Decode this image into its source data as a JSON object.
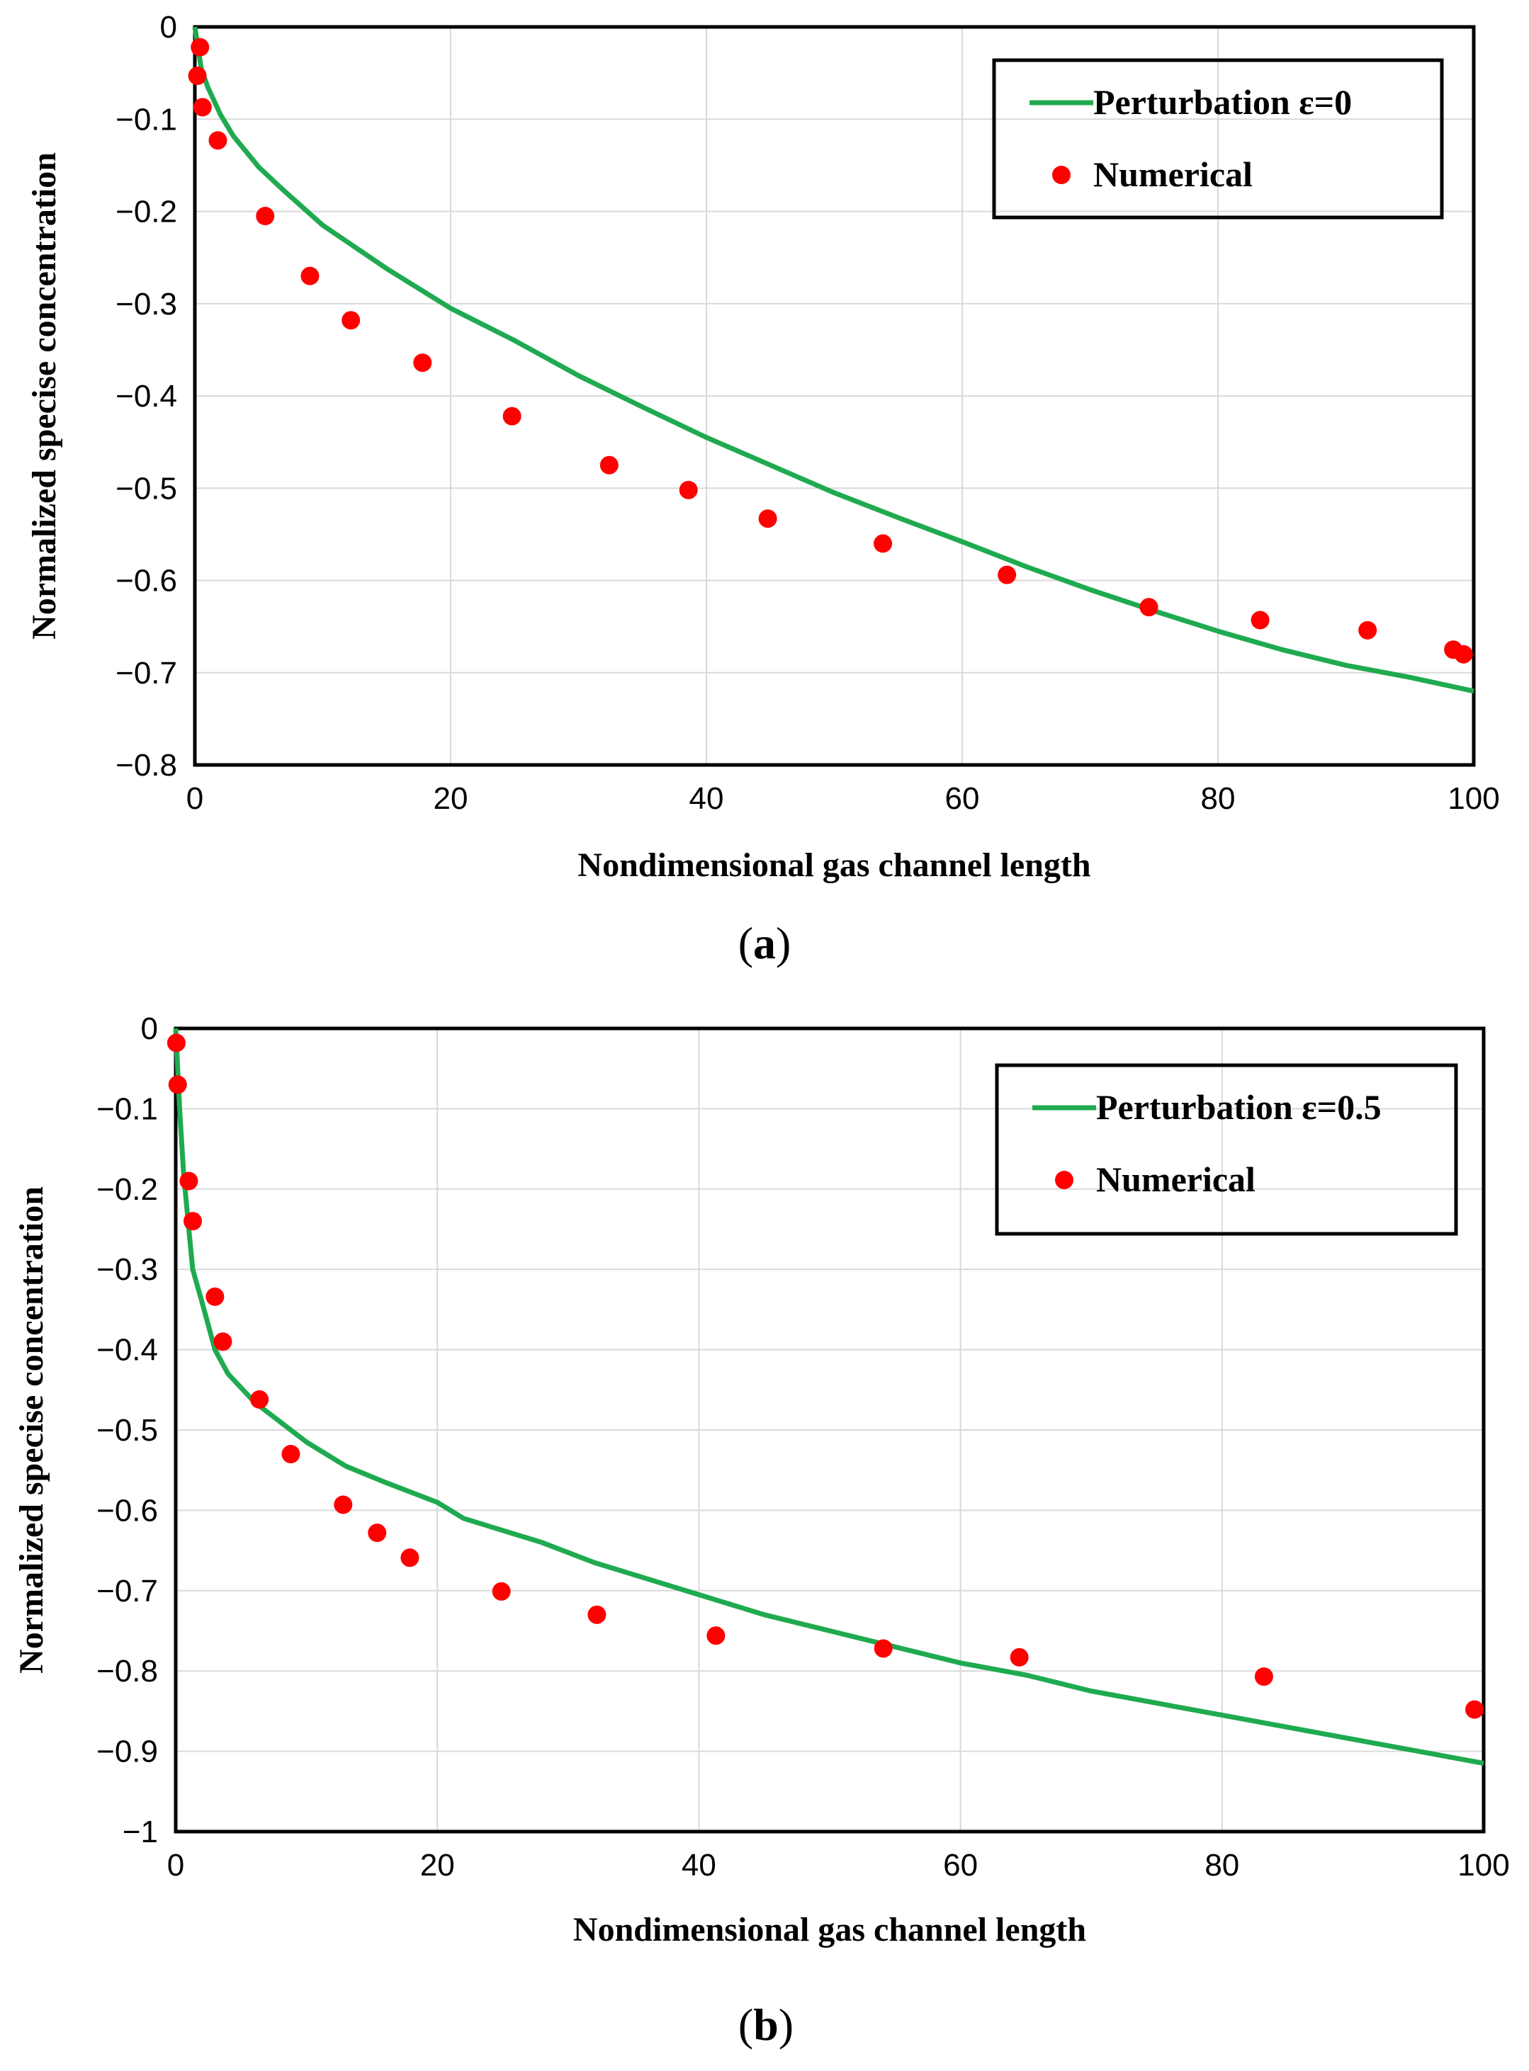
{
  "colors": {
    "curve": "#1faa50",
    "points": "#ff0000",
    "grid": "#d9d9d9"
  },
  "chart_data": [
    {
      "type": "line",
      "panel_label_letter": "a",
      "xlabel": "Nondimensional gas channel length",
      "ylabel": "Normalized specise concentration",
      "xlim": [
        0,
        100
      ],
      "ylim": [
        -0.8,
        0
      ],
      "xticks": [
        0,
        20,
        40,
        60,
        80,
        100
      ],
      "xtick_labels": [
        "0",
        "20",
        "40",
        "60",
        "80",
        "100"
      ],
      "yticks": [
        0,
        -0.1,
        -0.2,
        -0.3,
        -0.4,
        -0.5,
        -0.6,
        -0.7,
        -0.8
      ],
      "ytick_labels": [
        "0",
        "−0.1",
        "−0.2",
        "−0.3",
        "−0.4",
        "−0.5",
        "−0.6",
        "−0.7",
        "−0.8"
      ],
      "legend_position": "top-right",
      "series": [
        {
          "name": "Perturbation ε=0",
          "kind": "line",
          "x": [
            0,
            0.5,
            1,
            2,
            3,
            5,
            7,
            10,
            15,
            20,
            25,
            30,
            35,
            40,
            45,
            50,
            55,
            60,
            65,
            70,
            75,
            80,
            85,
            90,
            95,
            100
          ],
          "y": [
            0,
            -0.045,
            -0.065,
            -0.095,
            -0.118,
            -0.152,
            -0.178,
            -0.215,
            -0.262,
            -0.305,
            -0.34,
            -0.378,
            -0.412,
            -0.445,
            -0.475,
            -0.505,
            -0.532,
            -0.558,
            -0.585,
            -0.61,
            -0.633,
            -0.655,
            -0.675,
            -0.692,
            -0.705,
            -0.72
          ]
        },
        {
          "name": "Numerical",
          "kind": "scatter",
          "x": [
            0.2,
            0.4,
            0.6,
            1.8,
            5.5,
            9,
            12.2,
            17.8,
            24.8,
            32.4,
            38.6,
            44.8,
            53.8,
            63.5,
            74.6,
            83.3,
            91.7,
            98.4,
            99.2
          ],
          "y": [
            -0.053,
            -0.022,
            -0.087,
            -0.123,
            -0.205,
            -0.27,
            -0.318,
            -0.364,
            -0.422,
            -0.475,
            -0.502,
            -0.533,
            -0.56,
            -0.594,
            -0.629,
            -0.643,
            -0.654,
            -0.675,
            -0.68
          ]
        }
      ]
    },
    {
      "type": "line",
      "panel_label_letter": "b",
      "xlabel": "Nondimensional gas channel length",
      "ylabel": "Normalized specise concentration",
      "xlim": [
        0,
        100
      ],
      "ylim": [
        -1,
        0
      ],
      "xticks": [
        0,
        20,
        40,
        60,
        80,
        100
      ],
      "xtick_labels": [
        "0",
        "20",
        "40",
        "60",
        "80",
        "100"
      ],
      "yticks": [
        0,
        -0.1,
        -0.2,
        -0.3,
        -0.4,
        -0.5,
        -0.6,
        -0.7,
        -0.8,
        -0.9,
        -1
      ],
      "ytick_labels": [
        "0",
        "−0.1",
        "−0.2",
        "−0.3",
        "−0.4",
        "−0.5",
        "−0.6",
        "−0.7",
        "−0.8",
        "−0.9",
        "−1"
      ],
      "legend_position": "top-right",
      "series": [
        {
          "name": "Perturbation ε=0.5",
          "kind": "line",
          "x": [
            0,
            0.3,
            0.6,
            1,
            1.3,
            2,
            3,
            4,
            6,
            8,
            10,
            13,
            16,
            20,
            22,
            25,
            28,
            32,
            36,
            40,
            45,
            50,
            55,
            60,
            65,
            70,
            75,
            80,
            85,
            90,
            95,
            100
          ],
          "y": [
            0,
            -0.1,
            -0.18,
            -0.25,
            -0.3,
            -0.34,
            -0.4,
            -0.43,
            -0.465,
            -0.49,
            -0.515,
            -0.545,
            -0.565,
            -0.59,
            -0.61,
            -0.625,
            -0.64,
            -0.665,
            -0.685,
            -0.705,
            -0.73,
            -0.75,
            -0.77,
            -0.79,
            -0.805,
            -0.825,
            -0.84,
            -0.855,
            -0.87,
            -0.885,
            -0.9,
            -0.915
          ]
        },
        {
          "name": "Numerical",
          "kind": "scatter",
          "x": [
            0.05,
            0.15,
            1,
            1.3,
            3,
            3.6,
            6.4,
            8.8,
            12.8,
            15.4,
            17.9,
            24.9,
            32.2,
            41.3,
            54.1,
            64.5,
            83.2,
            99.3
          ],
          "y": [
            -0.018,
            -0.07,
            -0.19,
            -0.24,
            -0.334,
            -0.39,
            -0.462,
            -0.53,
            -0.593,
            -0.628,
            -0.659,
            -0.701,
            -0.73,
            -0.756,
            -0.772,
            -0.783,
            -0.807,
            -0.848
          ]
        }
      ]
    }
  ]
}
